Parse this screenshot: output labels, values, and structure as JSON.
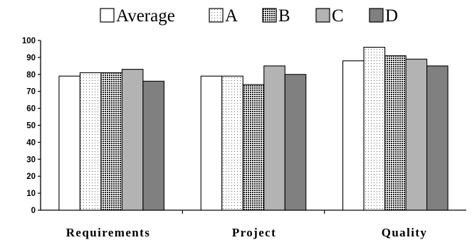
{
  "chart_data": {
    "type": "bar",
    "title": "",
    "xlabel": "",
    "ylabel": "",
    "categories": [
      "Requirements",
      "Project",
      "Quality"
    ],
    "series": [
      {
        "name": "Average",
        "values": [
          79,
          79,
          88
        ],
        "color": "#ffffff",
        "pattern": "solid"
      },
      {
        "name": "A",
        "values": [
          81,
          79,
          96
        ],
        "color": "#ffffff",
        "pattern": "dots"
      },
      {
        "name": "B",
        "values": [
          81,
          74,
          91
        ],
        "color": "#ffffff",
        "pattern": "crosshatch"
      },
      {
        "name": "C",
        "values": [
          83,
          85,
          89
        ],
        "color": "#b3b3b3",
        "pattern": "solid"
      },
      {
        "name": "D",
        "values": [
          76,
          80,
          85
        ],
        "color": "#808080",
        "pattern": "solid"
      }
    ],
    "ylim": [
      0,
      100
    ],
    "yticks": [
      0,
      10,
      20,
      30,
      40,
      50,
      60,
      70,
      80,
      90,
      100
    ],
    "grid": false,
    "legend": "top-center"
  }
}
